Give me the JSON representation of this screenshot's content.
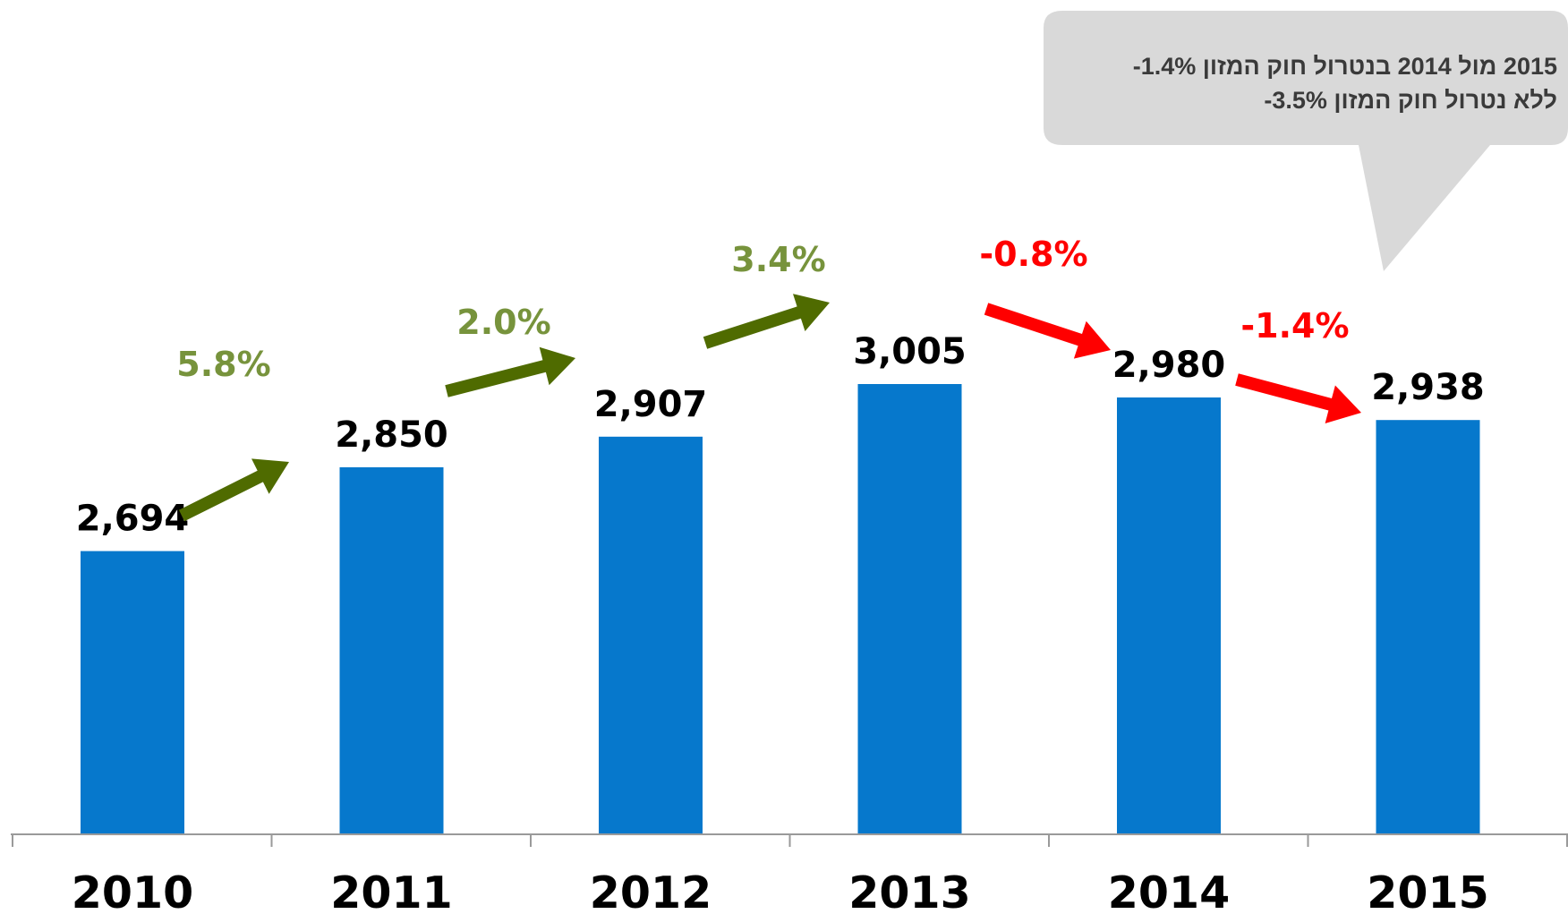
{
  "chart_data": {
    "type": "bar",
    "categories": [
      "2010",
      "2011",
      "2012",
      "2013",
      "2014",
      "2015"
    ],
    "values": [
      2694,
      2850,
      2907,
      3005,
      2980,
      2938
    ],
    "value_labels": [
      "2,694",
      "2,850",
      "2,907",
      "3,005",
      "2,980",
      "2,938"
    ],
    "bar_color": "#0678cc",
    "changes": [
      {
        "label": "5.8%",
        "direction": "up",
        "color": "#77933c",
        "arrow_color": "#4f6b00"
      },
      {
        "label": "2.0%",
        "direction": "up",
        "color": "#77933c",
        "arrow_color": "#4f6b00"
      },
      {
        "label": "3.4%",
        "direction": "up",
        "color": "#77933c",
        "arrow_color": "#4f6b00"
      },
      {
        "label": "-0.8%",
        "direction": "down",
        "color": "#ff0000",
        "arrow_color": "#ff0000"
      },
      {
        "label": "-1.4%",
        "direction": "down",
        "color": "#ff0000",
        "arrow_color": "#ff0000"
      }
    ],
    "grid": false,
    "legend": "none"
  },
  "callout": {
    "lines": [
      "2015 מול 2014 בנטרול חוק המזון 1.4%-",
      "ללא נטרול חוק המזון 3.5%-"
    ],
    "background": "#d9d9d9"
  }
}
